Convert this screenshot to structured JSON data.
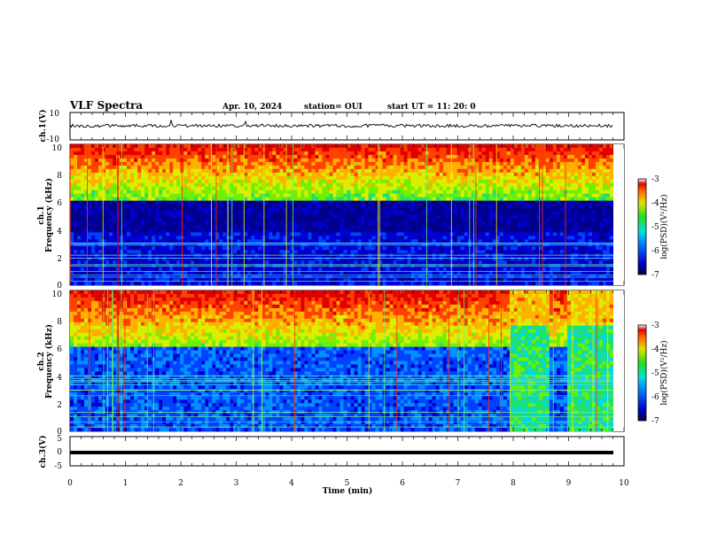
{
  "header": {
    "title": "VLF Spectra",
    "date": "Apr. 10, 2024",
    "station": "station= OUI",
    "start": "start  UT =   11: 20: 0"
  },
  "chart_data": [
    {
      "type": "line",
      "panel": "ch1-waveform",
      "ylabel": "ch.1(V)",
      "ylim": [
        -10,
        10
      ],
      "yticks": [
        "10",
        "-10"
      ],
      "xlim": [
        0,
        10
      ]
    },
    {
      "type": "heatmap",
      "panel": "ch1-spectrogram",
      "ylabel": "ch.1",
      "ylabel2": "Frequency (kHz)",
      "ylim": [
        0,
        10
      ],
      "yticks": [
        "0",
        "2",
        "4",
        "6",
        "8",
        "10"
      ],
      "xlim": [
        0,
        10
      ],
      "colorbar": {
        "label": "log(PSD)(V²/Hz)",
        "range": [
          -7,
          -3
        ],
        "ticks": [
          "-3",
          "-4",
          "-5",
          "-6",
          "-7"
        ]
      }
    },
    {
      "type": "heatmap",
      "panel": "ch2-spectrogram",
      "ylabel": "ch.2",
      "ylabel2": "Frequency (kHz)",
      "ylim": [
        0,
        10
      ],
      "yticks": [
        "0",
        "2",
        "4",
        "6",
        "8",
        "10"
      ],
      "xlim": [
        0,
        10
      ],
      "colorbar": {
        "label": "log(PSD)(V²/Hz)",
        "range": [
          -7,
          -3
        ],
        "ticks": [
          "-3",
          "-4",
          "-5",
          "-6",
          "-7"
        ]
      }
    },
    {
      "type": "line",
      "panel": "ch3-waveform",
      "ylabel": "ch.3(V)",
      "ylim": [
        -5,
        5
      ],
      "yticks": [
        "5",
        "0",
        "-5"
      ],
      "xlim": [
        0,
        10
      ],
      "xticks": [
        "0",
        "1",
        "2",
        "3",
        "4",
        "5",
        "6",
        "7",
        "8",
        "9",
        "10"
      ],
      "xlabel": "Time (min)"
    }
  ]
}
